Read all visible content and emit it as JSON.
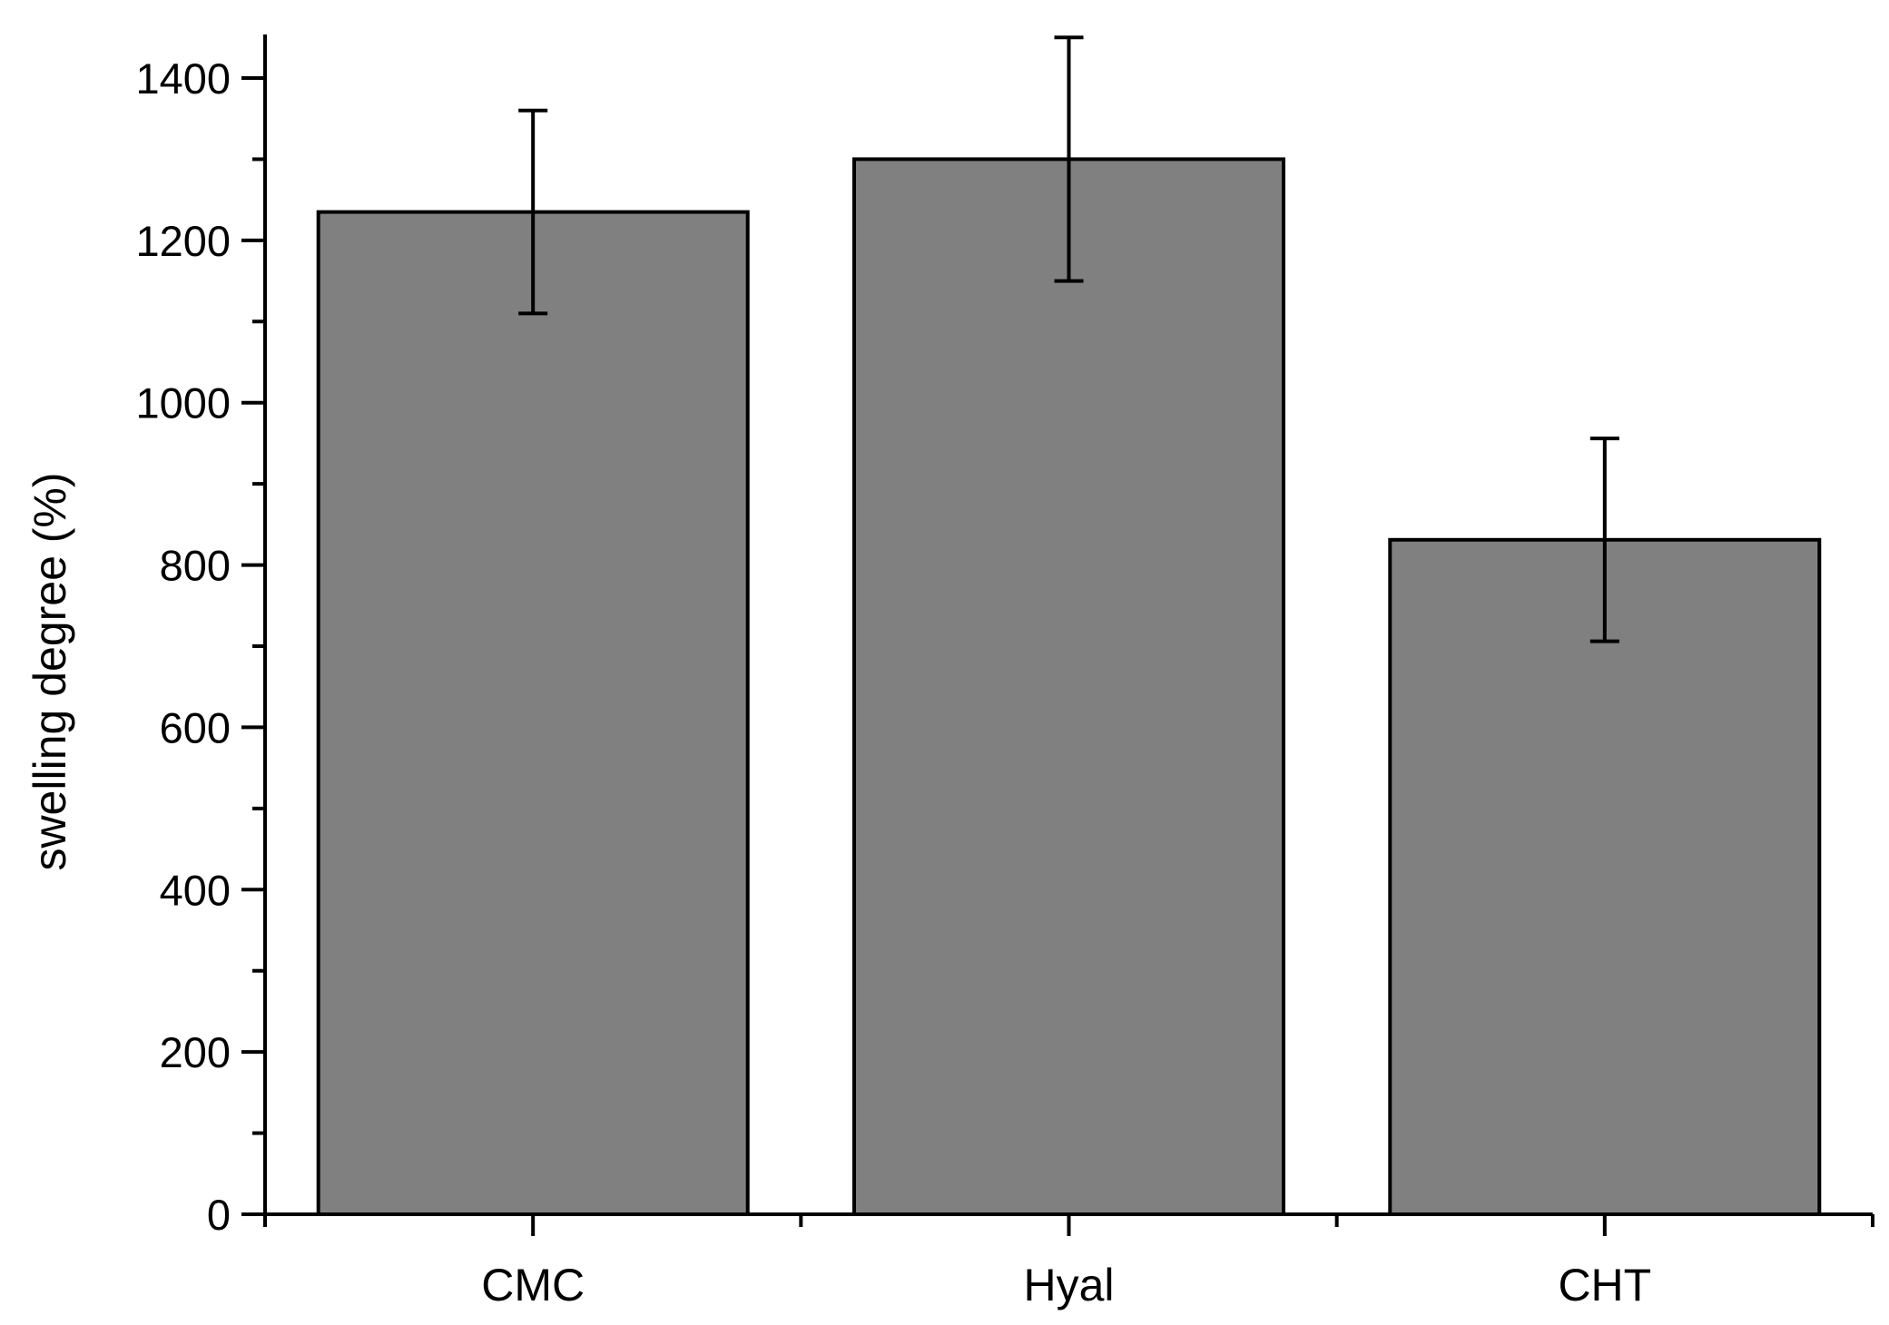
{
  "chart_data": {
    "type": "bar",
    "title": "",
    "xlabel": "",
    "ylabel": "swelling degree (%)",
    "categories": [
      "CMC",
      "Hyal",
      "CHT"
    ],
    "series": [
      {
        "values": [
          1235,
          1300,
          831
        ],
        "errors": [
          125,
          150,
          125
        ]
      }
    ],
    "ylim": [
      0,
      1400
    ],
    "yticks": [
      "0",
      "200",
      "400",
      "600",
      "800",
      "1000",
      "1200",
      "1400"
    ],
    "grid": false,
    "legend": "none",
    "colors": {
      "bar_fill": "#808080",
      "bar_stroke": "#000000",
      "axis": "#000000",
      "background": "#ffffff"
    }
  }
}
